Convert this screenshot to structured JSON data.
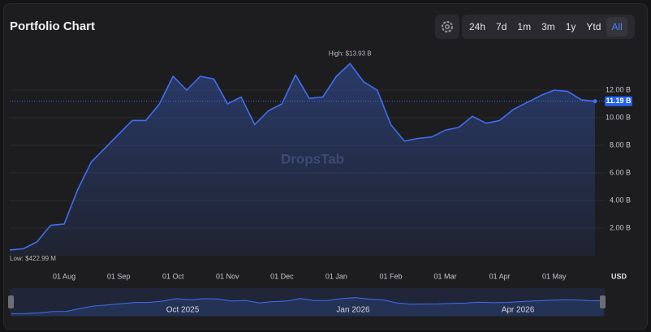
{
  "header": {
    "title": "Portfolio Chart",
    "ranges": [
      "24h",
      "7d",
      "1m",
      "3m",
      "1y",
      "Ytd",
      "All"
    ],
    "active_range": "All"
  },
  "chart_data": {
    "type": "line",
    "categories": [
      null,
      null,
      null,
      null,
      "01 Aug",
      null,
      null,
      null,
      "01 Sep",
      null,
      null,
      null,
      "01 Oct",
      null,
      null,
      null,
      "01 Nov",
      null,
      null,
      null,
      "01 Dec",
      null,
      null,
      null,
      "01 Jan",
      null,
      null,
      null,
      "01 Feb",
      null,
      null,
      null,
      "01 Mar",
      null,
      null,
      null,
      "01 Apr",
      null,
      null,
      null,
      "01 May",
      null,
      null,
      null
    ],
    "series": [
      {
        "color": "#3f6fee",
        "values": [
          0.42,
          0.5,
          1.0,
          2.2,
          2.3,
          4.8,
          6.8,
          7.8,
          8.8,
          9.8,
          9.8,
          11.0,
          13.0,
          12.0,
          13.0,
          12.8,
          11.0,
          11.5,
          9.5,
          10.5,
          11.0,
          13.1,
          11.4,
          11.5,
          13.0,
          13.93,
          12.6,
          12.0,
          9.5,
          8.3,
          8.5,
          8.6,
          9.1,
          9.3,
          10.1,
          9.6,
          9.8,
          10.6,
          11.1,
          11.6,
          12.0,
          11.9,
          11.3,
          11.19
        ]
      }
    ],
    "ylim": [
      0,
      15
    ],
    "yticks": [
      {
        "value": 2,
        "label": "2.00 B"
      },
      {
        "value": 4,
        "label": "4.00 B"
      },
      {
        "value": 6,
        "label": "6.00 B"
      },
      {
        "value": 8,
        "label": "8.00 B"
      },
      {
        "value": 10,
        "label": "10.00 B"
      },
      {
        "value": 12,
        "label": "12.00 B"
      }
    ],
    "grid": true,
    "current": {
      "value": 11.19,
      "label": "11.19 B"
    },
    "high_label": "High: $13.93 B",
    "low_label": "Low: $422.99 M",
    "currency": "USD",
    "watermark": "DropsTab",
    "navigator_labels": [
      "Oct 2025",
      "Jan 2026",
      "Apr 2026"
    ]
  }
}
